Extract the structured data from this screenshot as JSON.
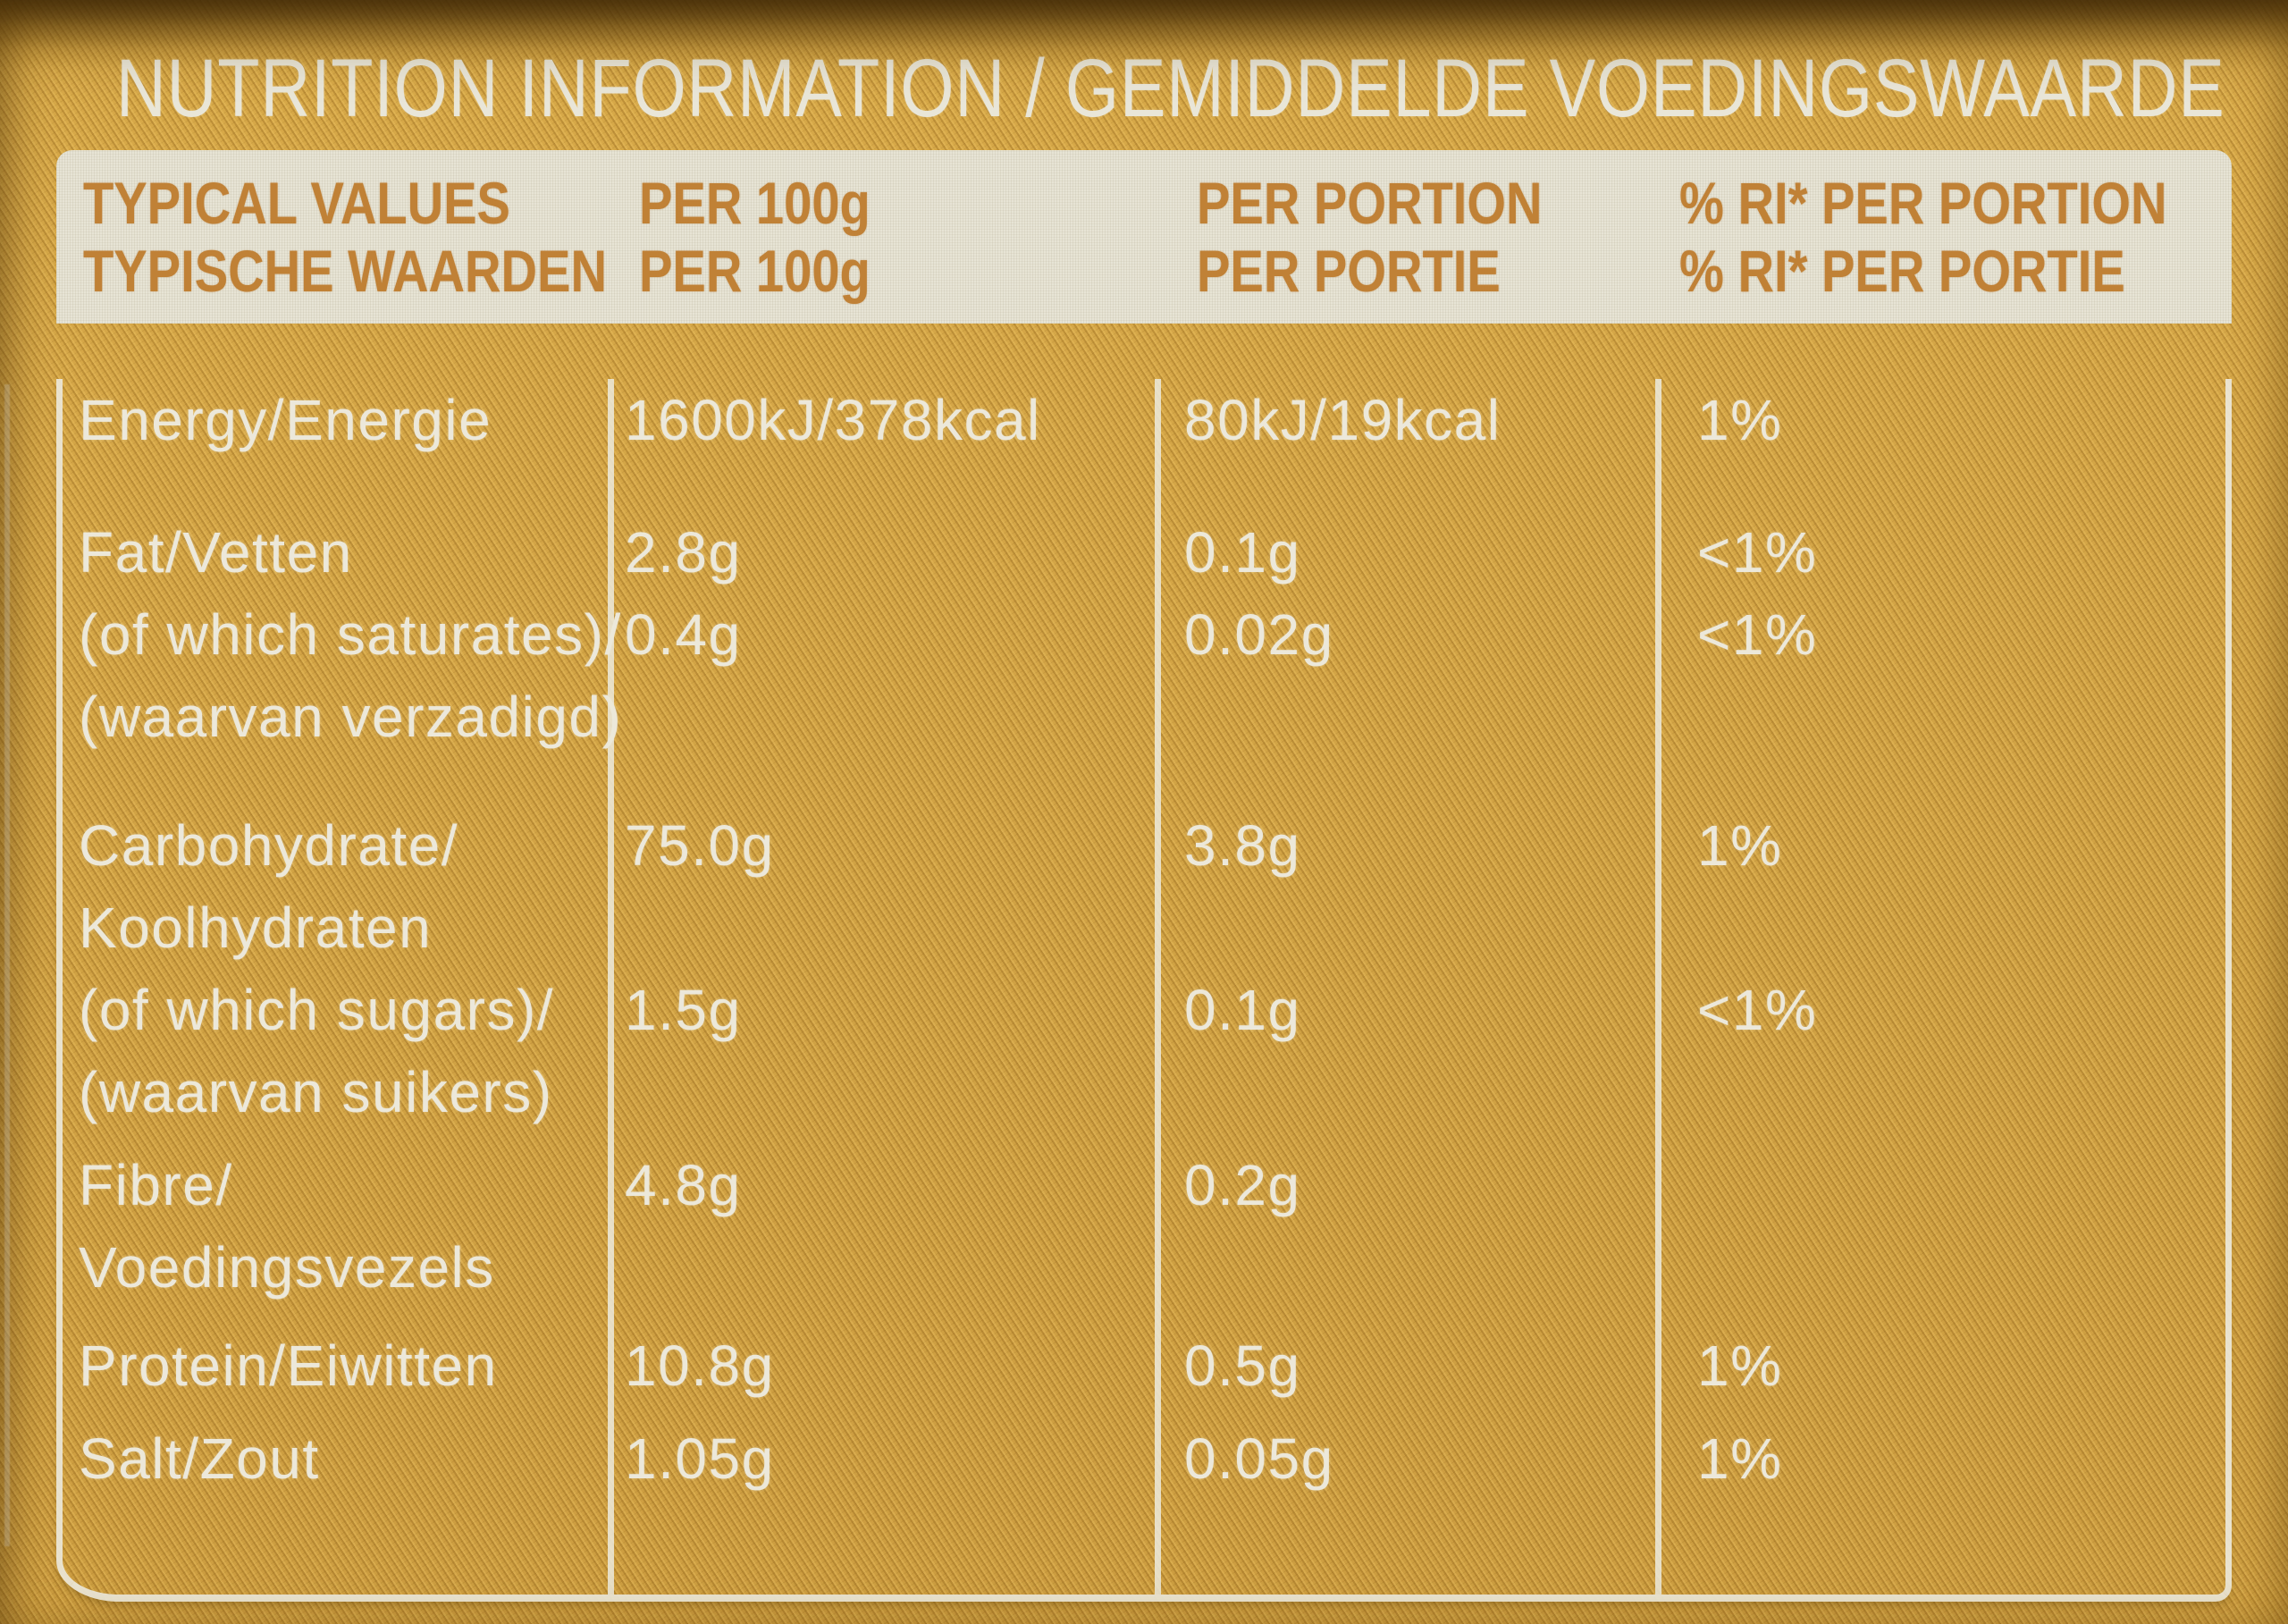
{
  "title": "NUTRITION INFORMATION / GEMIDDELDE VOEDINGSWAARDE",
  "header": {
    "col1_line1": "TYPICAL VALUES",
    "col1_line2": "TYPISCHE WAARDEN",
    "col2_line1": "PER 100g",
    "col2_line2": "PER 100g",
    "col3_line1": "PER PORTION",
    "col3_line2": "PER PORTIE",
    "col4_line1": "% RI* PER PORTION",
    "col4_line2": "% RI* PER PORTIE"
  },
  "rows": [
    {
      "label_lines": [
        "Energy/Energie"
      ],
      "per100": "1600kJ/378kcal",
      "portion": "80kJ/19kcal",
      "ri": "1%"
    },
    {
      "label_lines": [
        "Fat/Vetten"
      ],
      "per100": "2.8g",
      "portion": "0.1g",
      "ri": "<1%"
    },
    {
      "label_lines": [
        "(of which saturates)/",
        "(waarvan verzadigd)"
      ],
      "per100": "0.4g",
      "portion": "0.02g",
      "ri": "<1%"
    },
    {
      "label_lines": [
        "Carbohydrate/",
        "Koolhydraten"
      ],
      "per100": "75.0g",
      "portion": "3.8g",
      "ri": "1%"
    },
    {
      "label_lines": [
        "(of which sugars)/",
        "(waarvan suikers)"
      ],
      "per100": "1.5g",
      "portion": "0.1g",
      "ri": "<1%"
    },
    {
      "label_lines": [
        "Fibre/",
        "Voedingsvezels"
      ],
      "per100": "4.8g",
      "portion": "0.2g",
      "ri": ""
    },
    {
      "label_lines": [
        "Protein/Eiwitten"
      ],
      "per100": "10.8g",
      "portion": "0.5g",
      "ri": "1%"
    },
    {
      "label_lines": [
        "Salt/Zout"
      ],
      "per100": "1.05g",
      "portion": "0.05g",
      "ri": "1%"
    }
  ],
  "colors": {
    "package_gold": "#d2a140",
    "weave_dark": "#96681c",
    "weave_light": "#e8bd5c",
    "cream_band": "#e7e4d5",
    "header_text_orange": "#c08136",
    "body_text_cream": "#ece8da",
    "line_cream": "#ece8da"
  }
}
